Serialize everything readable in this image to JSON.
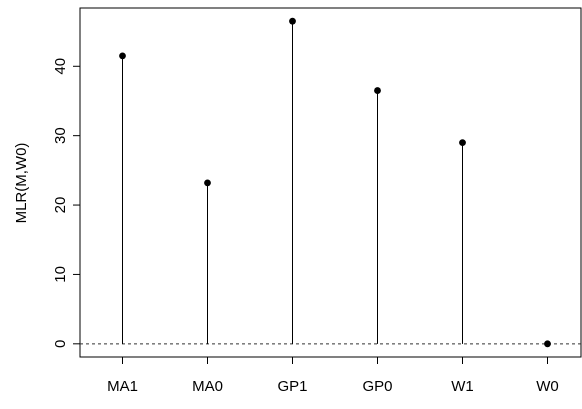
{
  "chart_data": {
    "type": "scatter",
    "style": "lollipop",
    "categories": [
      "MA1",
      "MA0",
      "GP1",
      "GP0",
      "W1",
      "W0"
    ],
    "values": [
      41.5,
      23.2,
      46.5,
      36.5,
      29.0,
      0.0
    ],
    "title": "",
    "xlabel": "",
    "ylabel": "MLR(M,W0)",
    "ylim": [
      -1.9,
      48.4
    ],
    "yticks": [
      0,
      10,
      20,
      30,
      40
    ],
    "reference_line": {
      "value": 0,
      "style": "dotted"
    },
    "grid": false,
    "legend": "none",
    "colors": {
      "stem": "#000000",
      "point": "#000000",
      "axis": "#000000",
      "reference": "#333333"
    }
  }
}
